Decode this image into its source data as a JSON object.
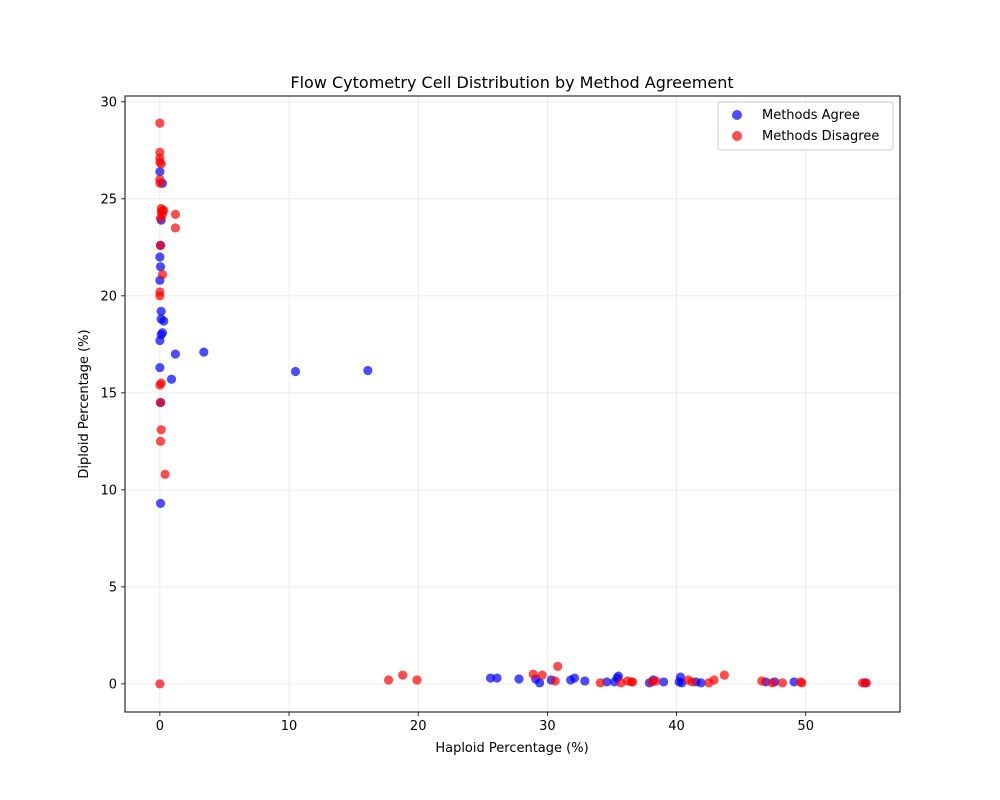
{
  "chart_data": {
    "type": "scatter",
    "title": "Flow Cytometry Cell Distribution by Method Agreement",
    "xlabel": "Haploid Percentage (%)",
    "ylabel": "Diploid Percentage (%)",
    "xlim": [
      -2.7,
      57.3
    ],
    "ylim": [
      -1.45,
      30.3
    ],
    "xticks": [
      0,
      10,
      20,
      30,
      40,
      50
    ],
    "yticks": [
      0,
      5,
      10,
      15,
      20,
      25,
      30
    ],
    "grid": true,
    "legend_position": "top-right",
    "series": [
      {
        "name": "Methods Agree",
        "color": "#0000ff",
        "points": [
          [
            0,
            26.4
          ],
          [
            0.2,
            25.8
          ],
          [
            0.1,
            23.9
          ],
          [
            0.05,
            22.6
          ],
          [
            0,
            22.0
          ],
          [
            0.05,
            21.5
          ],
          [
            0,
            20.8
          ],
          [
            0.1,
            19.2
          ],
          [
            0.1,
            18.8
          ],
          [
            0.2,
            18.1
          ],
          [
            0.3,
            18.7
          ],
          [
            0.1,
            18.0
          ],
          [
            0,
            17.7
          ],
          [
            1.2,
            17.0
          ],
          [
            3.4,
            17.1
          ],
          [
            0.9,
            15.7
          ],
          [
            0,
            16.3
          ],
          [
            0.05,
            14.5
          ],
          [
            0.05,
            9.3
          ],
          [
            10.5,
            16.1
          ],
          [
            16.1,
            16.15
          ],
          [
            25.6,
            0.3
          ],
          [
            26.1,
            0.3
          ],
          [
            27.8,
            0.25
          ],
          [
            29.1,
            0.25
          ],
          [
            29.4,
            0.05
          ],
          [
            30.3,
            0.2
          ],
          [
            31.8,
            0.2
          ],
          [
            32.1,
            0.3
          ],
          [
            32.9,
            0.15
          ],
          [
            34.6,
            0.1
          ],
          [
            35.2,
            0.1
          ],
          [
            35.4,
            0.3
          ],
          [
            35.5,
            0.4
          ],
          [
            37.9,
            0.05
          ],
          [
            38.2,
            0.2
          ],
          [
            39.0,
            0.1
          ],
          [
            40.2,
            0.1
          ],
          [
            40.3,
            0.35
          ],
          [
            40.4,
            0.05
          ],
          [
            41.5,
            0.1
          ],
          [
            41.9,
            0.05
          ],
          [
            46.9,
            0.1
          ],
          [
            47.6,
            0.1
          ],
          [
            49.1,
            0.1
          ],
          [
            54.6,
            0.05
          ]
        ]
      },
      {
        "name": "Methods Disagree",
        "color": "#ff0000",
        "points": [
          [
            0,
            28.9
          ],
          [
            0,
            27.4
          ],
          [
            0,
            27.1
          ],
          [
            0,
            26.9
          ],
          [
            0.1,
            26.8
          ],
          [
            0,
            26.0
          ],
          [
            0,
            25.8
          ],
          [
            0.1,
            24.5
          ],
          [
            0.1,
            24.3
          ],
          [
            0.2,
            24.4
          ],
          [
            0.3,
            24.4
          ],
          [
            0.2,
            24.2
          ],
          [
            0.05,
            24.0
          ],
          [
            1.2,
            24.2
          ],
          [
            1.2,
            23.5
          ],
          [
            0.05,
            22.6
          ],
          [
            0.2,
            21.1
          ],
          [
            0,
            20.2
          ],
          [
            0,
            20.0
          ],
          [
            0,
            15.4
          ],
          [
            0.1,
            15.5
          ],
          [
            0.05,
            14.5
          ],
          [
            0.1,
            13.1
          ],
          [
            0.05,
            12.5
          ],
          [
            0.4,
            10.8
          ],
          [
            0,
            0
          ],
          [
            17.7,
            0.2
          ],
          [
            18.8,
            0.45
          ],
          [
            19.9,
            0.2
          ],
          [
            28.9,
            0.5
          ],
          [
            29.6,
            0.45
          ],
          [
            30.6,
            0.15
          ],
          [
            30.8,
            0.9
          ],
          [
            34.1,
            0.05
          ],
          [
            35.7,
            0.05
          ],
          [
            36.2,
            0.15
          ],
          [
            36.5,
            0.1
          ],
          [
            36.6,
            0.1
          ],
          [
            38.1,
            0.1
          ],
          [
            38.4,
            0.15
          ],
          [
            40.9,
            0.2
          ],
          [
            41.2,
            0.1
          ],
          [
            42.5,
            0.05
          ],
          [
            42.9,
            0.2
          ],
          [
            43.7,
            0.45
          ],
          [
            46.6,
            0.15
          ],
          [
            47.4,
            0.05
          ],
          [
            48.2,
            0.05
          ],
          [
            49.6,
            0.1
          ],
          [
            49.7,
            0.05
          ],
          [
            54.4,
            0.05
          ],
          [
            54.7,
            0.05
          ]
        ]
      }
    ]
  }
}
